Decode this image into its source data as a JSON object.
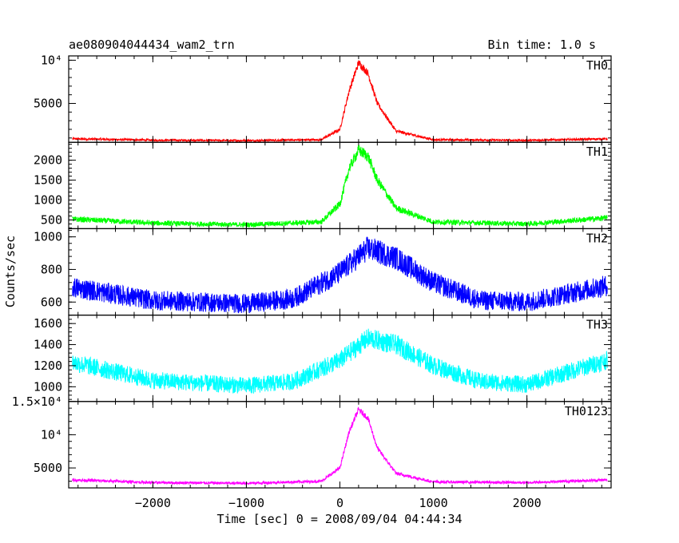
{
  "header": {
    "title": "ae080904044434_wam2_trn",
    "bin_time": "Bin time: 1.0 s"
  },
  "chart_data": {
    "type": "line",
    "title": "ae080904044434_wam2_trn",
    "xlabel": "Time [sec] 0 = 2008/09/04 04:44:34",
    "ylabel": "Counts/sec",
    "xlim": [
      -2900,
      2900
    ],
    "x_ticks": [
      -2000,
      -1000,
      0,
      1000,
      2000
    ],
    "x_tick_labels": [
      "−2000",
      "−1000",
      "0",
      "1000",
      "2000"
    ],
    "panels": [
      {
        "name": "TH0",
        "color": "#ff0000",
        "ylim": [
          500,
          10500
        ],
        "y_ticks": [
          5000,
          10000
        ],
        "y_tick_labels": [
          "5000",
          "10⁴"
        ],
        "baseline": 750,
        "peak": 9700,
        "peak_time": 220,
        "width": 170,
        "noise": 120,
        "curve_x": [
          -2850,
          -2000,
          -1000,
          -200,
          0,
          100,
          200,
          300,
          400,
          600,
          1000,
          2000,
          2850
        ],
        "curve_y": [
          900,
          750,
          700,
          800,
          2000,
          6500,
          9700,
          8500,
          5000,
          1800,
          800,
          720,
          900
        ]
      },
      {
        "name": "TH1",
        "color": "#00ff00",
        "ylim": [
          280,
          2450
        ],
        "y_ticks": [
          500,
          1000,
          1500,
          2000
        ],
        "y_tick_labels": [
          "500",
          "1000",
          "1500",
          "2000"
        ],
        "baseline": 380,
        "peak": 2250,
        "peak_time": 220,
        "width": 180,
        "noise": 60,
        "curve_x": [
          -2850,
          -2000,
          -1000,
          -200,
          0,
          100,
          200,
          300,
          400,
          600,
          1000,
          2000,
          2850
        ],
        "curve_y": [
          520,
          420,
          380,
          450,
          900,
          1800,
          2250,
          2100,
          1500,
          800,
          450,
          400,
          550
        ]
      },
      {
        "name": "TH2",
        "color": "#0000ff",
        "ylim": [
          520,
          1050
        ],
        "y_ticks": [
          600,
          800,
          1000
        ],
        "y_tick_labels": [
          "600",
          "800",
          "1000"
        ],
        "baseline": 590,
        "peak": 930,
        "peak_time": 330,
        "width": 550,
        "noise": 60,
        "curve_x": [
          -2850,
          -2000,
          -1000,
          -500,
          0,
          300,
          600,
          1000,
          1500,
          2000,
          2850
        ],
        "curve_y": [
          690,
          610,
          590,
          620,
          780,
          930,
          870,
          720,
          610,
          600,
          700
        ]
      },
      {
        "name": "TH3",
        "color": "#00ffff",
        "ylim": [
          860,
          1680
        ],
        "y_ticks": [
          1000,
          1200,
          1400,
          1600
        ],
        "y_tick_labels": [
          "1000",
          "1200",
          "1400",
          "1600"
        ],
        "baseline": 1010,
        "peak": 1460,
        "peak_time": 330,
        "width": 600,
        "noise": 80,
        "curve_x": [
          -2850,
          -2000,
          -1000,
          -500,
          0,
          300,
          600,
          1000,
          1500,
          2000,
          2850
        ],
        "curve_y": [
          1230,
          1060,
          1010,
          1050,
          1250,
          1460,
          1400,
          1200,
          1050,
          1020,
          1250
        ]
      },
      {
        "name": "TH0123",
        "color": "#ff00ff",
        "ylim": [
          2000,
          15000
        ],
        "y_ticks": [
          5000,
          10000,
          15000
        ],
        "y_tick_labels": [
          "5000",
          "10⁴",
          "1.5×10⁴"
        ],
        "baseline": 2800,
        "peak": 13800,
        "peak_time": 220,
        "width": 180,
        "noise": 200,
        "curve_x": [
          -2850,
          -2000,
          -1000,
          -200,
          0,
          100,
          200,
          300,
          400,
          600,
          1000,
          2000,
          2850
        ],
        "curve_y": [
          3200,
          2800,
          2700,
          3000,
          5000,
          10500,
          13800,
          12500,
          8000,
          4200,
          2900,
          2800,
          3200
        ]
      }
    ],
    "grid": false,
    "legend": "panel labels top-right"
  }
}
